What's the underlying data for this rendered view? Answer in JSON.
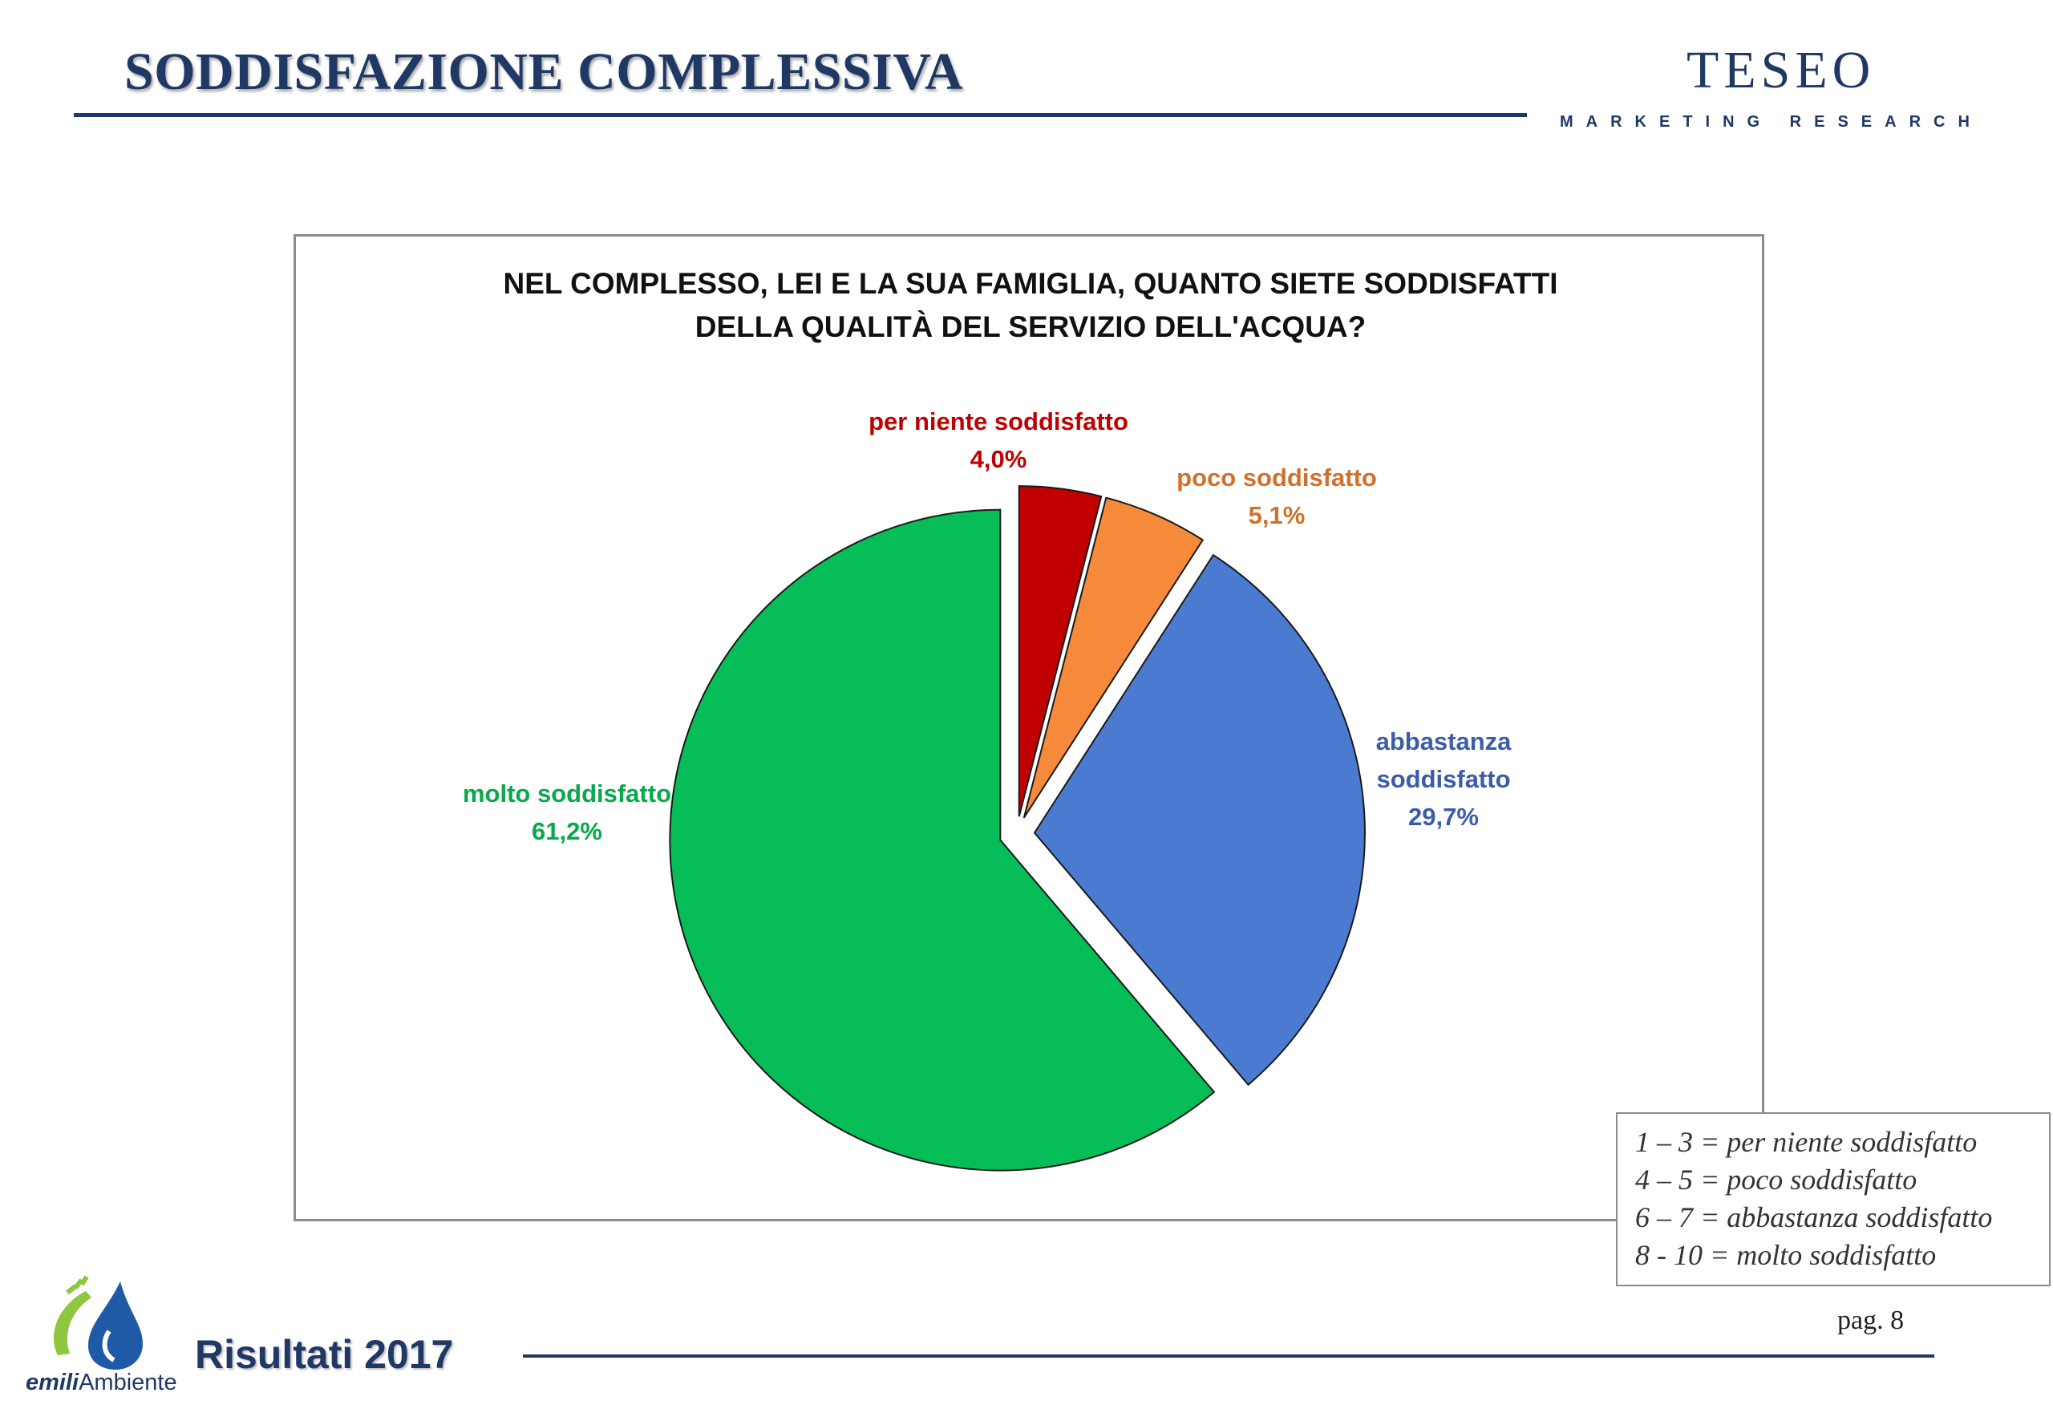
{
  "header": {
    "title": "SODDISFAZIONE COMPLESSIVA",
    "brand_name": "TESEO",
    "brand_tagline": "MARKETING RESEARCH"
  },
  "chart_data": {
    "type": "pie",
    "title_lines": [
      "NEL COMPLESSO, LEI E LA SUA FAMIGLIA, QUANTO SIETE SODDISFATTI",
      "DELLA QUALITÀ DEL SERVIZIO DELL'ACQUA?"
    ],
    "start_angle_deg": 0,
    "direction": "clockwise",
    "exploded": true,
    "slices": [
      {
        "label": "per niente soddisfatto",
        "label_lines": [
          "per niente soddisfatto"
        ],
        "value": 4.0,
        "value_label": "4,0%",
        "color": "#c00000",
        "label_color": "#c00000"
      },
      {
        "label": "poco soddisfatto",
        "label_lines": [
          "poco soddisfatto"
        ],
        "value": 5.1,
        "value_label": "5,1%",
        "color": "#f68a3b",
        "label_color": "#d0702a"
      },
      {
        "label": "abbastanza soddisfatto",
        "label_lines": [
          "abbastanza",
          "soddisfatto"
        ],
        "value": 29.7,
        "value_label": "29,7%",
        "color": "#4a7bd0",
        "label_color": "#3b5ca8"
      },
      {
        "label": "molto soddisfatto",
        "label_lines": [
          "molto soddisfatto"
        ],
        "value": 61.2,
        "value_label": "61,2%",
        "color": "#07bd57",
        "label_color": "#08a84b"
      }
    ]
  },
  "legend": {
    "lines": [
      "1 – 3 = per niente soddisfatto",
      "4 – 5 = poco soddisfatto",
      "6 – 7 = abbastanza soddisfatto",
      "8 - 10 = molto soddisfatto"
    ]
  },
  "footer": {
    "title": "Risultati 2017",
    "page_label": "pag. 8",
    "logo_text_bold": "emili",
    "logo_text_rest": "Ambiente"
  },
  "colors": {
    "brand_navy": "#1f3864",
    "frame_gray": "#8c8c8c"
  }
}
